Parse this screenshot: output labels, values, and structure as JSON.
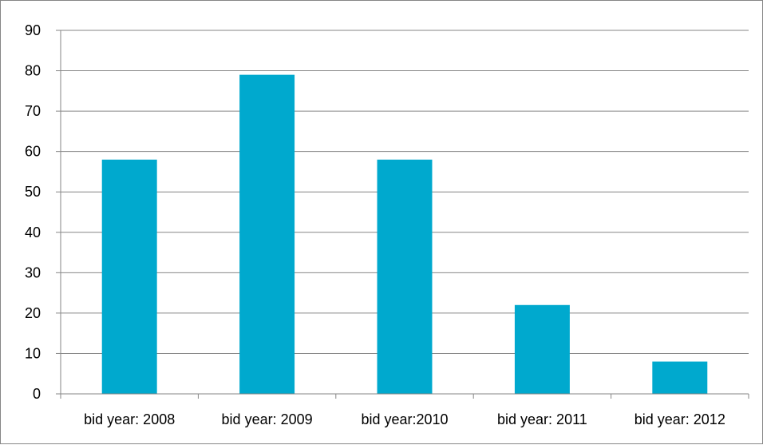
{
  "chart_data": {
    "type": "bar",
    "title": "",
    "xlabel": "",
    "ylabel": "",
    "categories": [
      "bid year: 2008",
      "bid year: 2009",
      "bid year:2010",
      "bid year: 2011",
      "bid year: 2012"
    ],
    "values": [
      58,
      79,
      58,
      22,
      8
    ],
    "ylim": [
      0,
      90
    ],
    "yticks": [
      0,
      10,
      20,
      30,
      40,
      50,
      60,
      70,
      80,
      90
    ],
    "grid": true,
    "legend": "none",
    "colors": {
      "bar": "#00A9CE",
      "grid": "#868686",
      "axis": "#868686"
    }
  }
}
